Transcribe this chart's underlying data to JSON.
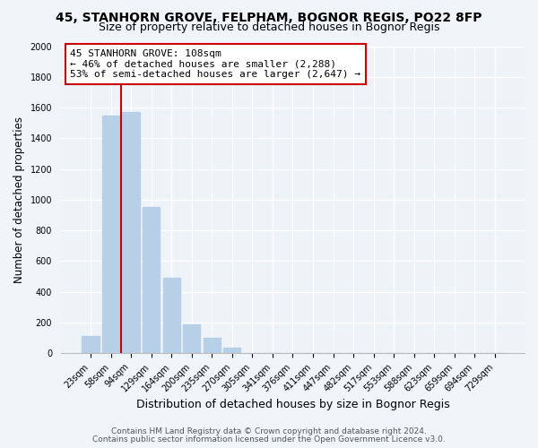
{
  "title_line1": "45, STANHORN GROVE, FELPHAM, BOGNOR REGIS, PO22 8FP",
  "title_line2": "Size of property relative to detached houses in Bognor Regis",
  "xlabel": "Distribution of detached houses by size in Bognor Regis",
  "ylabel": "Number of detached properties",
  "bar_labels": [
    "23sqm",
    "58sqm",
    "94sqm",
    "129sqm",
    "164sqm",
    "200sqm",
    "235sqm",
    "270sqm",
    "305sqm",
    "341sqm",
    "376sqm",
    "411sqm",
    "447sqm",
    "482sqm",
    "517sqm",
    "553sqm",
    "588sqm",
    "623sqm",
    "659sqm",
    "694sqm",
    "729sqm"
  ],
  "bar_values": [
    112,
    1545,
    1570,
    950,
    490,
    190,
    100,
    38,
    0,
    0,
    0,
    0,
    0,
    0,
    0,
    0,
    0,
    0,
    0,
    0,
    0
  ],
  "bar_color": "#b8cfe8",
  "vline_x": 1.5,
  "vline_color": "#cc0000",
  "annotation_line1": "45 STANHORN GROVE: 108sqm",
  "annotation_line2": "← 46% of detached houses are smaller (2,288)",
  "annotation_line3": "53% of semi-detached houses are larger (2,647) →",
  "annotation_box_color": "#ffffff",
  "annotation_box_edgecolor": "#cc0000",
  "ylim": [
    0,
    2000
  ],
  "yticks": [
    0,
    200,
    400,
    600,
    800,
    1000,
    1200,
    1400,
    1600,
    1800,
    2000
  ],
  "footer_line1": "Contains HM Land Registry data © Crown copyright and database right 2024.",
  "footer_line2": "Contains public sector information licensed under the Open Government Licence v3.0.",
  "bg_color": "#f0f5fa",
  "plot_bg_color": "#eef3f8",
  "grid_color": "#ffffff",
  "title_fontsize": 10,
  "subtitle_fontsize": 9,
  "xlabel_fontsize": 9,
  "ylabel_fontsize": 8.5,
  "tick_fontsize": 7,
  "annotation_fontsize": 8,
  "footer_fontsize": 6.5
}
